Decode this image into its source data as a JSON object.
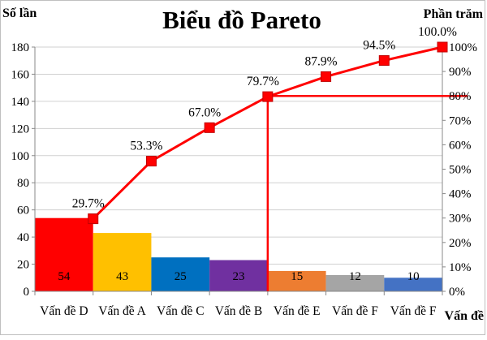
{
  "chart_data": {
    "type": "bar+line",
    "title": "Biểu đồ Pareto",
    "ylabel_left": "Số lần",
    "ylabel_right": "Phần trăm",
    "xlabel": "Vấn đề",
    "categories": [
      "Vấn đề D",
      "Vấn đề A",
      "Vấn đề C",
      "Vấn đề B",
      "Vấn đề E",
      "Vấn đề F",
      "Vấn đề F"
    ],
    "bar_values": [
      54,
      43,
      25,
      23,
      15,
      12,
      10
    ],
    "bar_labels": [
      "54",
      "43",
      "25",
      "23",
      "15",
      "12",
      "10"
    ],
    "bar_colors": [
      "#ff0000",
      "#ffc000",
      "#0070c0",
      "#7030a0",
      "#ed7d31",
      "#a5a5a5",
      "#4472c4"
    ],
    "cumulative_percent": [
      29.7,
      53.3,
      67.0,
      79.7,
      87.9,
      94.5,
      100.0
    ],
    "cumulative_labels": [
      "29.7%",
      "53.3%",
      "67.0%",
      "79.7%",
      "87.9%",
      "94.5%",
      "100.0%"
    ],
    "line_color": "#ff0000",
    "marker_color": "#ff0000",
    "ylim_left": [
      0,
      180
    ],
    "yticks_left": [
      "0",
      "20",
      "40",
      "60",
      "80",
      "100",
      "120",
      "140",
      "160",
      "180"
    ],
    "ylim_right": [
      0,
      100
    ],
    "yticks_right": [
      "0%",
      "10%",
      "20%",
      "30%",
      "40%",
      "50%",
      "60%",
      "70%",
      "80%",
      "90%",
      "100%"
    ],
    "cutoff_percent": 80,
    "grid": true
  }
}
